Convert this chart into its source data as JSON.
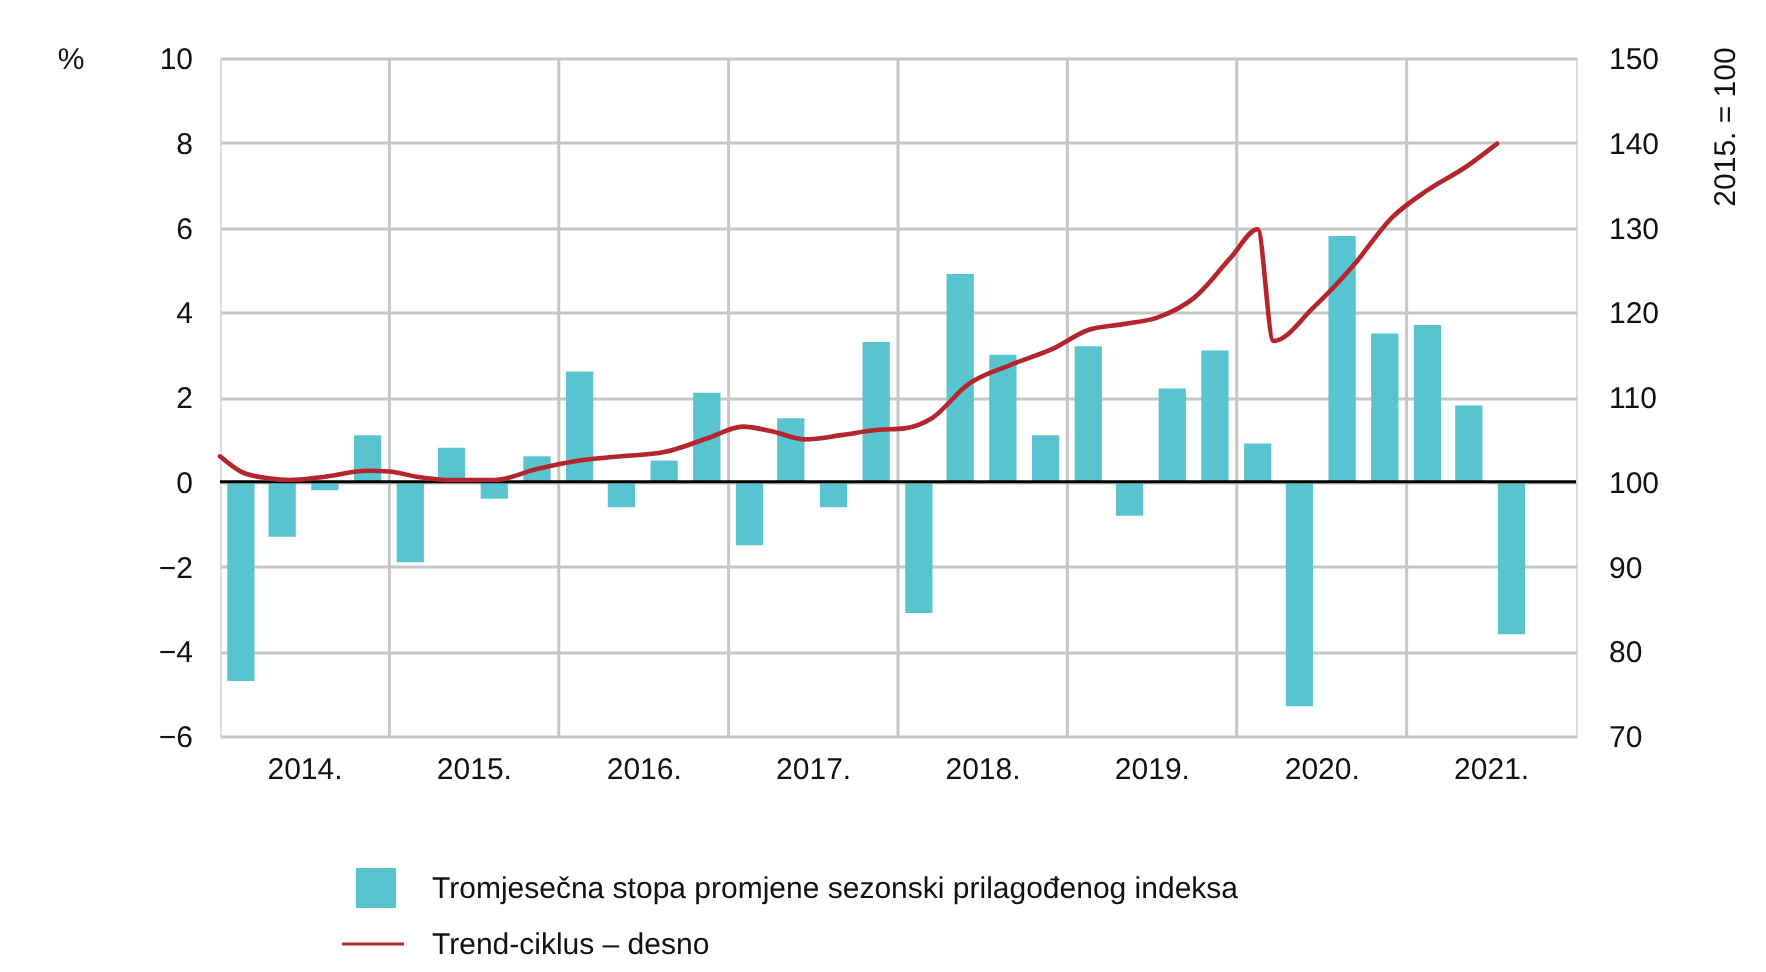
{
  "chart_data": {
    "type": "bar",
    "ylabel": "%",
    "y2label": "2015. = 100",
    "x": [
      "2014-02-15",
      "2014-05-15",
      "2014-08-15",
      "2014-11-15",
      "2015-02-15",
      "2015-05-15",
      "2015-08-15",
      "2015-11-15",
      "2016-02-15",
      "2016-05-15",
      "2016-08-15",
      "2016-11-15",
      "2017-02-15",
      "2017-05-15",
      "2017-08-15",
      "2017-11-15",
      "2018-02-15",
      "2018-05-15",
      "2018-08-15",
      "2018-11-15",
      "2019-02-15",
      "2019-05-15",
      "2019-08-15",
      "2019-11-15",
      "2020-02-15",
      "2020-05-15",
      "2020-08-15",
      "2020-11-15",
      "2021-02-15",
      "2021-05-15",
      "2021-08-15"
    ],
    "series": [
      {
        "name": "Tromjesečna stopa promjene sezonski prilagođenog indeksa",
        "color": "#58c4d0",
        "values": [
          -4.7,
          -1.3,
          -0.2,
          1.1,
          -1.9,
          0.8,
          -0.4,
          0.6,
          2.6,
          -0.6,
          0.5,
          2.1,
          -1.5,
          1.5,
          -0.6,
          3.3,
          -3.1,
          4.9,
          3.0,
          1.1,
          3.2,
          -0.8,
          2.2,
          3.1,
          0.9,
          -5.3,
          5.8,
          3.5,
          3.7,
          1.8,
          -3.6
        ]
      },
      {
        "name": "Trend-ciklus – desno",
        "type": "line",
        "axis": "y2",
        "color": "#b5252d",
        "x": [
          "2014-01-01",
          "2014-02-15",
          "2014-04-15",
          "2014-06-01",
          "2014-08-15",
          "2014-11-15",
          "2015-01-01",
          "2015-03-01",
          "2015-05-15",
          "2015-08-15",
          "2015-11-15",
          "2016-02-15",
          "2016-05-15",
          "2016-08-15",
          "2016-11-15",
          "2017-02-01",
          "2017-04-01",
          "2017-06-15",
          "2017-09-01",
          "2017-11-15",
          "2018-01-15",
          "2018-03-15",
          "2018-06-01",
          "2018-09-01",
          "2018-12-01",
          "2019-02-15",
          "2019-05-01",
          "2019-07-15",
          "2019-10-01",
          "2019-12-20",
          "2020-02-15",
          "2020-03-20",
          "2020-06-15",
          "2020-09-05",
          "2020-12-01",
          "2021-02-15",
          "2021-05-10",
          "2021-07-15"
        ],
        "values": [
          103.0,
          101.2,
          100.4,
          100.2,
          100.6,
          101.3,
          101.2,
          100.6,
          100.2,
          100.2,
          101.5,
          102.5,
          103.0,
          103.5,
          105.1,
          106.5,
          106.0,
          105.0,
          105.5,
          106.1,
          106.3,
          107.5,
          111.5,
          113.8,
          115.7,
          117.9,
          118.6,
          119.4,
          121.7,
          126.5,
          129.8,
          116.6,
          120.6,
          125.3,
          131.2,
          134.4,
          137.2,
          139.9
        ]
      }
    ],
    "xlim": [
      "2014-01",
      "2022-01"
    ],
    "xticks": [
      {
        "value": "2014-07",
        "label": "2014."
      },
      {
        "value": "2015-07",
        "label": "2015."
      },
      {
        "value": "2016-07",
        "label": "2016."
      },
      {
        "value": "2017-07",
        "label": "2017."
      },
      {
        "value": "2018-07",
        "label": "2018."
      },
      {
        "value": "2019-07",
        "label": "2019."
      },
      {
        "value": "2020-07",
        "label": "2020."
      },
      {
        "value": "2021-07",
        "label": "2021."
      }
    ],
    "ylim": [
      -6,
      10
    ],
    "yticks": [
      -6,
      -4,
      -2,
      0,
      2,
      4,
      6,
      8,
      10
    ],
    "y2lim": [
      70,
      150
    ],
    "y2ticks": [
      70,
      80,
      90,
      100,
      110,
      120,
      130,
      140,
      150
    ],
    "grid": "y",
    "legend": "bottom",
    "ref_lines": [
      {
        "axis": "y",
        "value": 0,
        "color": "#000000"
      },
      {
        "axis": "x",
        "value": "2015-01",
        "color": "#c6c6c6"
      },
      {
        "axis": "x",
        "value": "2016-01",
        "color": "#c6c6c6"
      },
      {
        "axis": "x",
        "value": "2017-01",
        "color": "#c6c6c6"
      },
      {
        "axis": "x",
        "value": "2018-01",
        "color": "#c6c6c6"
      },
      {
        "axis": "x",
        "value": "2019-01",
        "color": "#c6c6c6"
      },
      {
        "axis": "x",
        "value": "2020-01",
        "color": "#c6c6c6"
      },
      {
        "axis": "x",
        "value": "2021-01",
        "color": "#c6c6c6"
      }
    ]
  }
}
